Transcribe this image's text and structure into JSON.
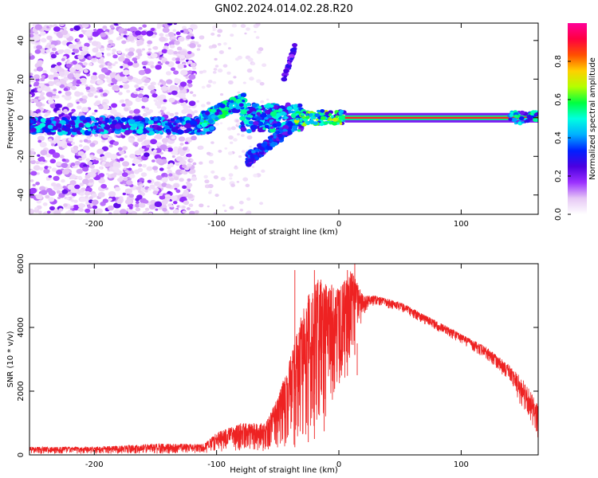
{
  "title": "GN02.2024.014.02.28.R20",
  "chart_data": [
    {
      "type": "heatmap",
      "xlabel": "Height of straight line (km)",
      "ylabel": "Frequency (Hz)",
      "xlim": [
        -253,
        163
      ],
      "ylim": [
        -50,
        49
      ],
      "x_ticks": [
        -200,
        -100,
        0,
        100
      ],
      "y_ticks": [
        -40,
        -20,
        0,
        20,
        40
      ],
      "colorbar": {
        "label": "Normalized spectral amplitude",
        "range": [
          0,
          1
        ],
        "ticks": [
          "0.0",
          "0.2",
          "0.4",
          "0.6",
          "0.8"
        ],
        "colors": [
          "#ffffff",
          "#e6c8f5",
          "#9b30ff",
          "#4b00e0",
          "#0020ff",
          "#00b0ff",
          "#00ffe0",
          "#00ff40",
          "#b4ff00",
          "#ffd000",
          "#ff5000",
          "#ff0040",
          "#ff0099"
        ]
      },
      "features": [
        {
          "name": "broadband noise",
          "x_range": [
            -253,
            -118
          ],
          "freq_range": [
            -50,
            49
          ],
          "amplitude": 0.15
        },
        {
          "name": "low-frequency band",
          "x_range": [
            -200,
            -100
          ],
          "freq_center": -4,
          "amplitude": 0.35
        },
        {
          "name": "rising branch",
          "x_from": -110,
          "x_to": -80,
          "freq_from": 0,
          "freq_to": 10
        },
        {
          "name": "branch to 37 Hz",
          "x_from": -45,
          "x_to": -36,
          "freq_from": 20,
          "freq_to": 37
        },
        {
          "name": "descending branch",
          "x_from": -40,
          "x_to": -75,
          "freq_from": -5,
          "freq_to": -22
        },
        {
          "name": "carrier line",
          "x_range": [
            0,
            163
          ],
          "freq": 0,
          "amplitude": 0.9
        }
      ]
    },
    {
      "type": "line",
      "xlabel": "Height of straight line (km)",
      "ylabel": "SNR (10 * v/v)",
      "xlim": [
        -253,
        163
      ],
      "ylim": [
        0,
        6000
      ],
      "x_ticks": [
        -200,
        -100,
        0,
        100
      ],
      "y_ticks": [
        0,
        2000,
        4000,
        6000
      ],
      "color": "#ee2222",
      "envelope": [
        {
          "x": -253,
          "low": 30,
          "high": 250
        },
        {
          "x": -200,
          "low": 30,
          "high": 250
        },
        {
          "x": -150,
          "low": 40,
          "high": 350
        },
        {
          "x": -110,
          "low": 50,
          "high": 350
        },
        {
          "x": -100,
          "low": 80,
          "high": 700
        },
        {
          "x": -80,
          "low": 150,
          "high": 1000
        },
        {
          "x": -60,
          "low": 100,
          "high": 1000
        },
        {
          "x": -50,
          "low": 200,
          "high": 1800
        },
        {
          "x": -40,
          "low": 200,
          "high": 3000
        },
        {
          "x": -30,
          "low": 300,
          "high": 4500
        },
        {
          "x": -20,
          "low": 500,
          "high": 5500
        },
        {
          "x": -10,
          "low": 800,
          "high": 5500
        },
        {
          "x": 0,
          "low": 2200,
          "high": 5200
        },
        {
          "x": 10,
          "low": 2600,
          "high": 5800
        },
        {
          "x": 20,
          "low": 4400,
          "high": 5000
        },
        {
          "x": 30,
          "low": 4700,
          "high": 5000
        },
        {
          "x": 50,
          "low": 4500,
          "high": 4800
        },
        {
          "x": 70,
          "low": 4100,
          "high": 4400
        },
        {
          "x": 100,
          "low": 3500,
          "high": 3800
        },
        {
          "x": 120,
          "low": 3000,
          "high": 3400
        },
        {
          "x": 140,
          "low": 2300,
          "high": 2800
        },
        {
          "x": 150,
          "low": 1400,
          "high": 2400
        },
        {
          "x": 160,
          "low": 700,
          "high": 1800
        },
        {
          "x": 163,
          "low": 500,
          "high": 1500
        }
      ],
      "spikes": [
        {
          "x": -36,
          "y": 5800
        },
        {
          "x": -25,
          "y": 5000
        },
        {
          "x": -20,
          "y": 5800
        },
        {
          "x": -12,
          "y": 5200
        },
        {
          "x": 13,
          "y": 6000
        },
        {
          "x": 7,
          "y": 5800
        },
        {
          "x": 13,
          "y": 5200
        },
        {
          "x": 15,
          "y": 2500
        }
      ]
    }
  ]
}
